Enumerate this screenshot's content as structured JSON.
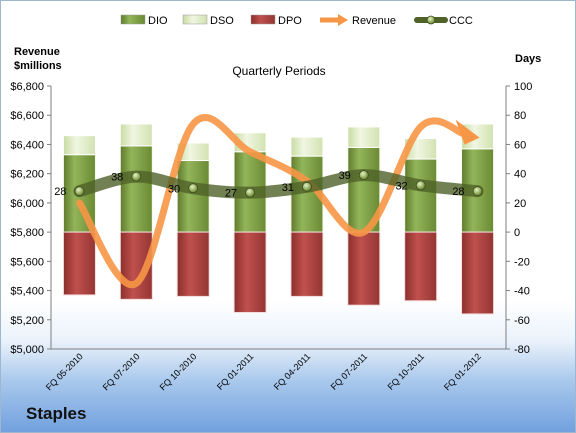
{
  "brand": "Staples",
  "chart_data": {
    "type": "bar",
    "title": "Quarterly Periods",
    "left_axis_label": [
      "Revenue",
      "$millions"
    ],
    "right_axis_label": "Days",
    "categories": [
      "FQ 05-2010",
      "FQ 07-2010",
      "FQ 10-2010",
      "FQ 01-2011",
      "FQ 04-2011",
      "FQ 07-2011",
      "FQ 10-2011",
      "FQ 01-2012"
    ],
    "left_axis": {
      "min": 5000,
      "max": 6800,
      "step": 200,
      "ticks": [
        "$5,000",
        "$5,200",
        "$5,400",
        "$5,600",
        "$5,800",
        "$6,000",
        "$6,200",
        "$6,400",
        "$6,600",
        "$6,800"
      ]
    },
    "right_axis": {
      "min": -80,
      "max": 100,
      "step": 20,
      "ticks": [
        "-80",
        "-60",
        "-40",
        "-20",
        "0",
        "20",
        "40",
        "60",
        "80",
        "100"
      ]
    },
    "legend": [
      "DIO",
      "DSO",
      "DPO",
      "Revenue",
      "CCC"
    ],
    "legend_position": "top",
    "series": [
      {
        "name": "DIO",
        "axis": "right",
        "stack": "positive",
        "color": "#77933c",
        "values": [
          53,
          59,
          49,
          55,
          52,
          58,
          50,
          57
        ]
      },
      {
        "name": "DSO",
        "axis": "right",
        "stack": "positive",
        "color": "#d7e4bd",
        "values": [
          13,
          15,
          12,
          13,
          13,
          14,
          14,
          17
        ]
      },
      {
        "name": "DPO",
        "axis": "right",
        "stack": "negative",
        "color": "#953735",
        "values": [
          -43,
          -46,
          -44,
          -55,
          -44,
          -50,
          -47,
          -56
        ]
      },
      {
        "name": "Revenue",
        "axis": "left",
        "type": "line",
        "color": "#f79646",
        "values": [
          6000,
          5450,
          6540,
          6350,
          6150,
          5800,
          6520,
          6460
        ]
      },
      {
        "name": "CCC",
        "axis": "right",
        "type": "line",
        "color": "#4f6228",
        "values": [
          28,
          38,
          30,
          27,
          31,
          39,
          32,
          28
        ],
        "labels": [
          "28",
          "38",
          "30",
          "27",
          "31",
          "39",
          "32",
          "28"
        ]
      }
    ],
    "grid": false
  }
}
